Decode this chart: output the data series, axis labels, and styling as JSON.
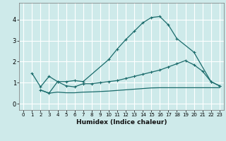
{
  "xlabel": "Humidex (Indice chaleur)",
  "bg_color": "#ceeaea",
  "grid_color": "#ffffff",
  "line_color": "#1a6b6b",
  "xlim": [
    -0.5,
    23.5
  ],
  "ylim": [
    -0.3,
    4.8
  ],
  "x_ticks": [
    0,
    1,
    2,
    3,
    4,
    5,
    6,
    7,
    8,
    9,
    10,
    11,
    12,
    13,
    14,
    15,
    16,
    17,
    18,
    19,
    20,
    21,
    22,
    23
  ],
  "y_ticks": [
    0,
    1,
    2,
    3,
    4
  ],
  "series1_x": [
    1,
    2,
    3,
    4,
    5,
    6,
    7,
    10,
    11,
    12,
    13,
    14,
    15,
    16,
    17,
    18,
    20,
    22,
    23
  ],
  "series1_y": [
    1.45,
    0.8,
    1.3,
    1.05,
    1.05,
    1.1,
    1.05,
    2.1,
    2.6,
    3.05,
    3.45,
    3.85,
    4.1,
    4.15,
    3.75,
    3.1,
    2.45,
    1.05,
    0.85
  ],
  "series2_x": [
    2,
    3,
    4,
    5,
    6,
    7,
    8,
    9,
    10,
    11,
    12,
    13,
    14,
    15,
    16,
    17,
    18,
    19,
    20,
    21,
    22,
    23
  ],
  "series2_y": [
    0.65,
    0.5,
    1.05,
    0.85,
    0.8,
    0.95,
    0.95,
    1.0,
    1.05,
    1.1,
    1.2,
    1.3,
    1.4,
    1.5,
    1.6,
    1.75,
    1.9,
    2.05,
    1.85,
    1.55,
    1.05,
    0.85
  ],
  "series3_x": [
    2,
    3,
    4,
    5,
    6,
    7,
    8,
    9,
    10,
    11,
    12,
    13,
    14,
    15,
    16,
    17,
    18,
    19,
    20,
    21,
    22,
    23
  ],
  "series3_y": [
    0.65,
    0.5,
    0.55,
    0.52,
    0.52,
    0.55,
    0.56,
    0.58,
    0.6,
    0.63,
    0.66,
    0.69,
    0.72,
    0.75,
    0.76,
    0.76,
    0.76,
    0.76,
    0.76,
    0.76,
    0.76,
    0.76
  ]
}
